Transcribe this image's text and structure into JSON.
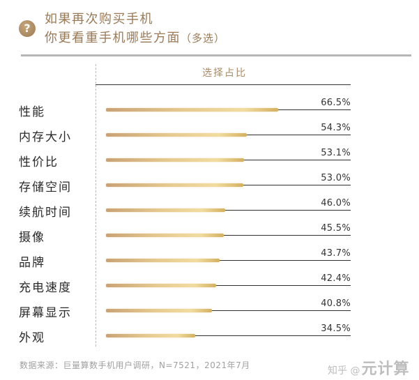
{
  "header": {
    "icon": "question-mark-icon",
    "icon_glyph": "?",
    "title_line1": "如果再次购买手机",
    "title_line2": "你更看重手机哪些方面",
    "title_suffix": "（多选）"
  },
  "column_header": "选择占比",
  "footer": {
    "source": "数据来源：巨量算数手机用户调研，N=7521，2021年7月",
    "watermark_prefix": "知乎 @",
    "watermark_brand": "元计算"
  },
  "colors": {
    "title": "#9a7a56",
    "bar_start": "#c9a275",
    "bar_mid": "#f1dc9f",
    "bar_end": "#d4b060",
    "label": "#2a2a2a",
    "leader_line": "#2e2e2e"
  },
  "rows": [
    {
      "label": "性能",
      "value": 66.5,
      "pct": "66.5%"
    },
    {
      "label": "内存大小",
      "value": 54.3,
      "pct": "54.3%"
    },
    {
      "label": "性价比",
      "value": 53.1,
      "pct": "53.1%"
    },
    {
      "label": "存储空间",
      "value": 53.0,
      "pct": "53.0%"
    },
    {
      "label": "续航时间",
      "value": 46.0,
      "pct": "46.0%"
    },
    {
      "label": "摄像",
      "value": 45.5,
      "pct": "45.5%"
    },
    {
      "label": "品牌",
      "value": 43.7,
      "pct": "43.7%"
    },
    {
      "label": "充电速度",
      "value": 42.4,
      "pct": "42.4%"
    },
    {
      "label": "屏幕显示",
      "value": 40.8,
      "pct": "40.8%"
    },
    {
      "label": "外观",
      "value": 34.5,
      "pct": "34.5%"
    }
  ],
  "chart_data": {
    "type": "bar",
    "orientation": "horizontal",
    "title": "如果再次购买手机 你更看重手机哪些方面（多选）",
    "xlabel": "选择占比",
    "ylabel": "",
    "categories": [
      "性能",
      "内存大小",
      "性价比",
      "存储空间",
      "续航时间",
      "摄像",
      "品牌",
      "充电速度",
      "屏幕显示",
      "外观"
    ],
    "values": [
      66.5,
      54.3,
      53.1,
      53.0,
      46.0,
      45.5,
      43.7,
      42.4,
      40.8,
      34.5
    ],
    "unit": "%",
    "data_labels": true,
    "grid": false,
    "legend": null,
    "source": "数据来源：巨量算数手机用户调研，N=7521，2021年7月"
  }
}
